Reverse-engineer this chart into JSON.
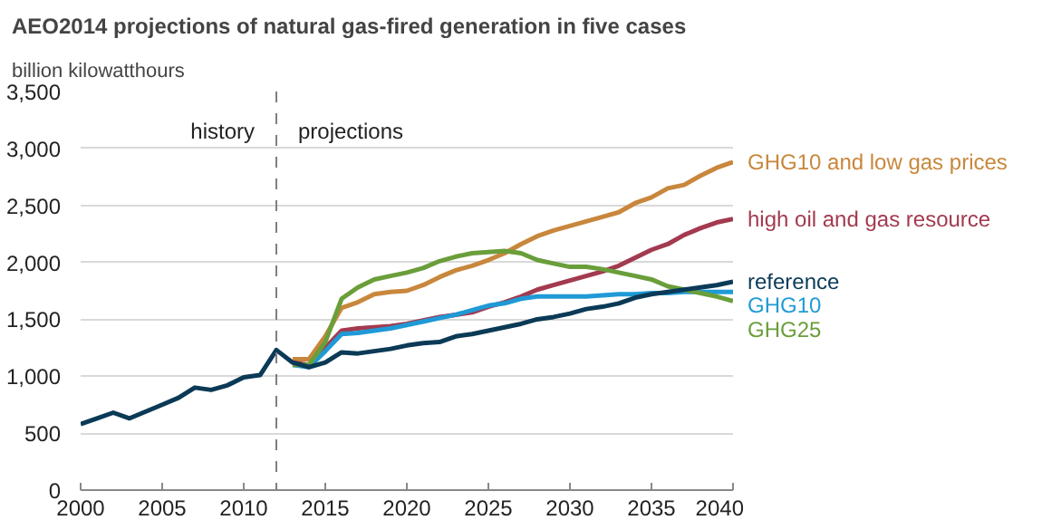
{
  "chart_data": {
    "type": "line",
    "title": "AEO2014  projections of natural gas-fired generation in five cases",
    "ylabel": "billion kilowatthours",
    "xlim": [
      2000,
      2040
    ],
    "xticks": [
      2000,
      2005,
      2010,
      2015,
      2020,
      2025,
      2030,
      2035,
      2040
    ],
    "ylim": [
      0,
      3500
    ],
    "yticks": [
      0,
      500,
      {
        "value": 1000,
        "label": "1,000"
      },
      {
        "value": 1500,
        "label": "1,500"
      },
      {
        "value": 2000,
        "label": "2,000"
      },
      {
        "value": 2500,
        "label": "2,500"
      },
      {
        "value": 3000,
        "label": "3,000"
      },
      {
        "value": 3500,
        "label": "3,500"
      }
    ],
    "grid": "y",
    "marker": "none",
    "line_style": "solid",
    "ref_lines": [
      {
        "axis": "x",
        "value": 2012,
        "color": "#7f7f7f",
        "line_style": "dashed"
      }
    ],
    "annotations": [
      "history",
      "projections"
    ],
    "series": [
      {
        "name": "GHG10 and low gas prices",
        "color": "#c8873c",
        "x": [
          2013,
          2014,
          2015,
          2016,
          2017,
          2018,
          2019,
          2020,
          2021,
          2022,
          2023,
          2024,
          2025,
          2026,
          2027,
          2028,
          2029,
          2030,
          2031,
          2032,
          2033,
          2034,
          2035,
          2036,
          2037,
          2038,
          2039,
          2040
        ],
        "values": [
          1150,
          1150,
          1350,
          1600,
          1650,
          1720,
          1740,
          1750,
          1800,
          1870,
          1930,
          1970,
          2020,
          2080,
          2160,
          2230,
          2280,
          2320,
          2360,
          2400,
          2440,
          2520,
          2570,
          2650,
          2680,
          2760,
          2830,
          2880
        ]
      },
      {
        "name": "high oil and gas resource",
        "color": "#a33a4f",
        "x": [
          2013,
          2014,
          2015,
          2016,
          2017,
          2018,
          2019,
          2020,
          2021,
          2022,
          2023,
          2024,
          2025,
          2026,
          2027,
          2028,
          2029,
          2030,
          2031,
          2032,
          2033,
          2034,
          2035,
          2036,
          2037,
          2038,
          2039,
          2040
        ],
        "values": [
          1120,
          1100,
          1250,
          1400,
          1420,
          1430,
          1440,
          1460,
          1490,
          1520,
          1540,
          1560,
          1610,
          1650,
          1700,
          1760,
          1800,
          1840,
          1880,
          1920,
          1970,
          2040,
          2110,
          2160,
          2240,
          2300,
          2350,
          2380
        ]
      },
      {
        "name": "GHG10",
        "color": "#1f9ad6",
        "x": [
          2013,
          2014,
          2015,
          2016,
          2017,
          2018,
          2019,
          2020,
          2021,
          2022,
          2023,
          2024,
          2025,
          2026,
          2027,
          2028,
          2029,
          2030,
          2031,
          2032,
          2033,
          2034,
          2035,
          2036,
          2037,
          2038,
          2039,
          2040
        ],
        "values": [
          1100,
          1080,
          1220,
          1370,
          1380,
          1400,
          1420,
          1450,
          1480,
          1510,
          1540,
          1580,
          1620,
          1640,
          1680,
          1700,
          1700,
          1700,
          1700,
          1710,
          1720,
          1720,
          1730,
          1730,
          1740,
          1740,
          1740,
          1740
        ]
      },
      {
        "name": "GHG25",
        "color": "#6a9e3a",
        "x": [
          2013,
          2014,
          2015,
          2016,
          2017,
          2018,
          2019,
          2020,
          2021,
          2022,
          2023,
          2024,
          2025,
          2026,
          2027,
          2028,
          2029,
          2030,
          2031,
          2032,
          2033,
          2034,
          2035,
          2036,
          2037,
          2038,
          2039,
          2040
        ],
        "values": [
          1100,
          1100,
          1300,
          1680,
          1780,
          1850,
          1880,
          1910,
          1950,
          2010,
          2050,
          2080,
          2090,
          2100,
          2080,
          2020,
          1990,
          1960,
          1960,
          1940,
          1910,
          1880,
          1850,
          1790,
          1760,
          1730,
          1700,
          1660
        ]
      },
      {
        "name": "reference",
        "color": "#0b3a56",
        "x": [
          2000,
          2001,
          2002,
          2003,
          2004,
          2005,
          2006,
          2007,
          2008,
          2009,
          2010,
          2011,
          2012,
          2013,
          2014,
          2015,
          2016,
          2017,
          2018,
          2019,
          2020,
          2021,
          2022,
          2023,
          2024,
          2025,
          2026,
          2027,
          2028,
          2029,
          2030,
          2031,
          2032,
          2033,
          2034,
          2035,
          2036,
          2037,
          2038,
          2039,
          2040
        ],
        "values": [
          580,
          630,
          680,
          630,
          690,
          750,
          810,
          900,
          880,
          920,
          990,
          1010,
          1230,
          1120,
          1080,
          1120,
          1210,
          1200,
          1220,
          1240,
          1270,
          1290,
          1300,
          1350,
          1370,
          1400,
          1430,
          1460,
          1500,
          1520,
          1550,
          1590,
          1610,
          1640,
          1690,
          1720,
          1740,
          1760,
          1780,
          1800,
          1830
        ]
      }
    ]
  }
}
